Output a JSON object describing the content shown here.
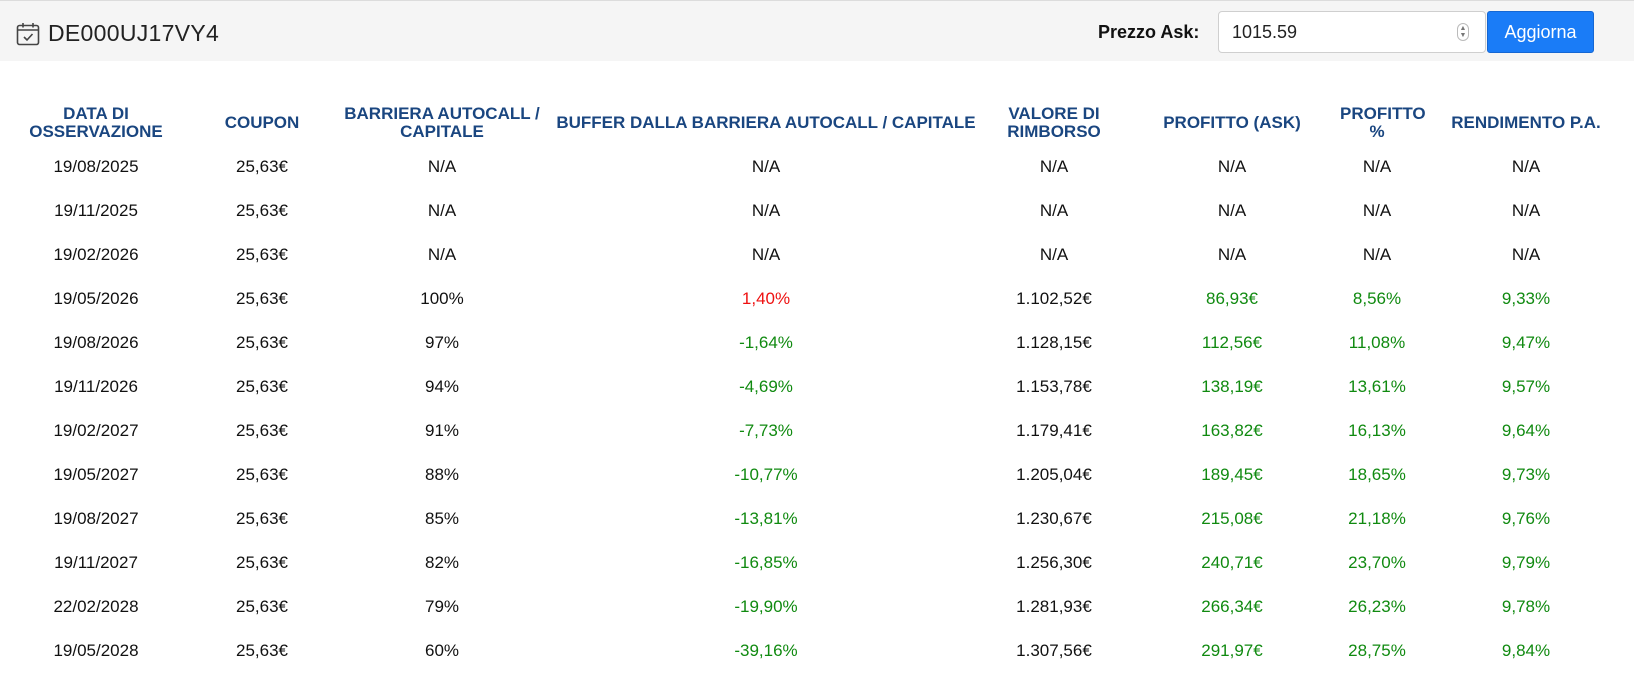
{
  "header": {
    "calendar_icon": "calendar-check-icon",
    "title": "DE000UJ17VY4",
    "ask_label": "Prezzo Ask:",
    "ask_value": "1015.59",
    "update_label": "Aggiorna"
  },
  "colors": {
    "header_text": "#1a4680",
    "negative": "#ee1111",
    "positive": "#108a10",
    "button": "#1a7cf7"
  },
  "table": {
    "columns": [
      "DATA DI OSSERVAZIONE",
      "COUPON",
      "BARRIERA AUTOCALL / CAPITALE",
      "BUFFER DALLA BARRIERA AUTOCALL / CAPITALE",
      "VALORE DI RIMBORSO",
      "PROFITTO (ASK)",
      "PROFITTO %",
      "RENDIMENTO P.A."
    ],
    "rows": [
      [
        "19/08/2025",
        "25,63€",
        "N/A",
        "N/A",
        "N/A",
        "N/A",
        "N/A",
        "N/A"
      ],
      [
        "19/11/2025",
        "25,63€",
        "N/A",
        "N/A",
        "N/A",
        "N/A",
        "N/A",
        "N/A"
      ],
      [
        "19/02/2026",
        "25,63€",
        "N/A",
        "N/A",
        "N/A",
        "N/A",
        "N/A",
        "N/A"
      ],
      [
        "19/05/2026",
        "25,63€",
        "100%",
        "1,40%",
        "1.102,52€",
        "86,93€",
        "8,56%",
        "9,33%"
      ],
      [
        "19/08/2026",
        "25,63€",
        "97%",
        "-1,64%",
        "1.128,15€",
        "112,56€",
        "11,08%",
        "9,47%"
      ],
      [
        "19/11/2026",
        "25,63€",
        "94%",
        "-4,69%",
        "1.153,78€",
        "138,19€",
        "13,61%",
        "9,57%"
      ],
      [
        "19/02/2027",
        "25,63€",
        "91%",
        "-7,73%",
        "1.179,41€",
        "163,82€",
        "16,13%",
        "9,64%"
      ],
      [
        "19/05/2027",
        "25,63€",
        "88%",
        "-10,77%",
        "1.205,04€",
        "189,45€",
        "18,65%",
        "9,73%"
      ],
      [
        "19/08/2027",
        "25,63€",
        "85%",
        "-13,81%",
        "1.230,67€",
        "215,08€",
        "21,18%",
        "9,76%"
      ],
      [
        "19/11/2027",
        "25,63€",
        "82%",
        "-16,85%",
        "1.256,30€",
        "240,71€",
        "23,70%",
        "9,79%"
      ],
      [
        "22/02/2028",
        "25,63€",
        "79%",
        "-19,90%",
        "1.281,93€",
        "266,34€",
        "26,23%",
        "9,78%"
      ],
      [
        "19/05/2028",
        "25,63€",
        "60%",
        "-39,16%",
        "1.307,56€",
        "291,97€",
        "28,75%",
        "9,84%"
      ]
    ]
  }
}
